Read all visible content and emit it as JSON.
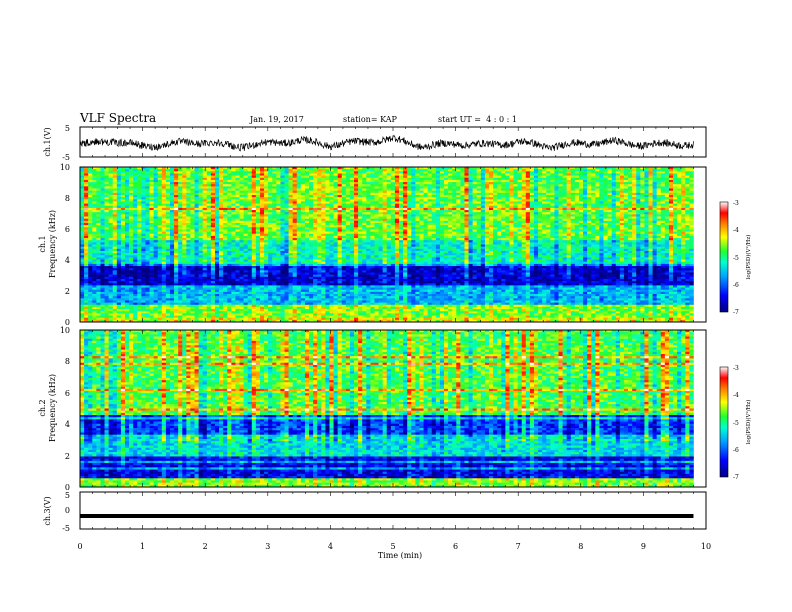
{
  "header": {
    "title": "VLF Spectra",
    "date": "Jan. 19, 2017",
    "station": "station= KAP",
    "start_ut": "start UT =  4 : 0 : 1"
  },
  "colors": {
    "trace": "#000000",
    "colormap": [
      "#00007f",
      "#0000ff",
      "#00a0ff",
      "#00ffd0",
      "#20ff30",
      "#ffff00",
      "#ff8000",
      "#ff0000",
      "#ffffff"
    ]
  },
  "chart_data": [
    {
      "id": "ch1-waveform",
      "type": "line",
      "ylabel": "ch.1(V)",
      "ylim": [
        -5,
        5
      ],
      "yticks": [
        "5",
        "-5"
      ],
      "xlim": [
        0,
        10
      ],
      "description_series": "noisy voltage trace around -0.5 V",
      "x": [
        0.0,
        0.5,
        1.0,
        1.5,
        2.0,
        2.5,
        3.0,
        3.5,
        4.0,
        4.5,
        5.0,
        5.5,
        6.0,
        6.5,
        7.0,
        7.5,
        8.0,
        8.5,
        9.0,
        9.5,
        9.8
      ],
      "y": [
        -1.0,
        0.5,
        -1.5,
        -0.5,
        0.0,
        -1.5,
        -0.5,
        0.5,
        -1.0,
        0.0,
        1.0,
        -1.5,
        -0.5,
        -1.0,
        0.0,
        -1.5,
        -0.5,
        0.0,
        -1.0,
        -0.5,
        -1.0
      ]
    },
    {
      "id": "ch1-spectrogram",
      "type": "heatmap",
      "ylabel_line1": "ch.1",
      "ylabel_line2": "Frequency (kHz)",
      "ylim": [
        0,
        10
      ],
      "yticks": [
        "0",
        "2",
        "4",
        "6",
        "8",
        "10"
      ],
      "xlim": [
        0,
        10
      ],
      "colorbar_label": "log(PSD)(V²/Hz)",
      "colorbar_range": [
        -7,
        -3
      ],
      "colorbar_ticks": [
        "-3",
        "-4",
        "-5",
        "-6",
        "-7"
      ],
      "bands": [
        {
          "freq_khz": [
            0.0,
            0.4
          ],
          "level": -4.3
        },
        {
          "freq_khz": [
            0.4,
            1.2
          ],
          "level": -4.6
        },
        {
          "freq_khz": [
            1.2,
            2.4
          ],
          "level": -5.6
        },
        {
          "freq_khz": [
            2.4,
            3.8
          ],
          "level": -6.6
        },
        {
          "freq_khz": [
            3.8,
            5.4
          ],
          "level": -5.2
        },
        {
          "freq_khz": [
            5.4,
            10.0
          ],
          "level": -4.7
        }
      ]
    },
    {
      "id": "ch2-spectrogram",
      "type": "heatmap",
      "ylabel_line1": "ch.2",
      "ylabel_line2": "Frequency (kHz)",
      "ylim": [
        0,
        10
      ],
      "yticks": [
        "0",
        "2",
        "4",
        "6",
        "8",
        "10"
      ],
      "xlim": [
        0,
        10
      ],
      "colorbar_label": "log(PSD)(V²/Hz)",
      "colorbar_range": [
        -7,
        -3
      ],
      "colorbar_ticks": [
        "-3",
        "-4",
        "-5",
        "-6",
        "-7"
      ],
      "bands": [
        {
          "freq_khz": [
            0.0,
            0.6
          ],
          "level": -4.6
        },
        {
          "freq_khz": [
            0.6,
            2.0
          ],
          "level": -6.5
        },
        {
          "freq_khz": [
            2.0,
            3.4
          ],
          "level": -5.4
        },
        {
          "freq_khz": [
            3.4,
            4.6
          ],
          "level": -6.2
        },
        {
          "freq_khz": [
            4.6,
            10.0
          ],
          "level": -4.8
        }
      ]
    },
    {
      "id": "ch3-waveform",
      "type": "line",
      "ylabel": "ch.3(V)",
      "ylim": [
        -5,
        5
      ],
      "yticks": [
        "5",
        "0",
        "-5"
      ],
      "xlim": [
        0,
        10
      ],
      "x": [
        0.0,
        9.8
      ],
      "y": [
        -1.5,
        -1.5
      ]
    }
  ],
  "x_axis": {
    "label": "Time (min)",
    "ticks": [
      "0",
      "1",
      "2",
      "3",
      "4",
      "5",
      "6",
      "7",
      "8",
      "9",
      "10"
    ]
  }
}
